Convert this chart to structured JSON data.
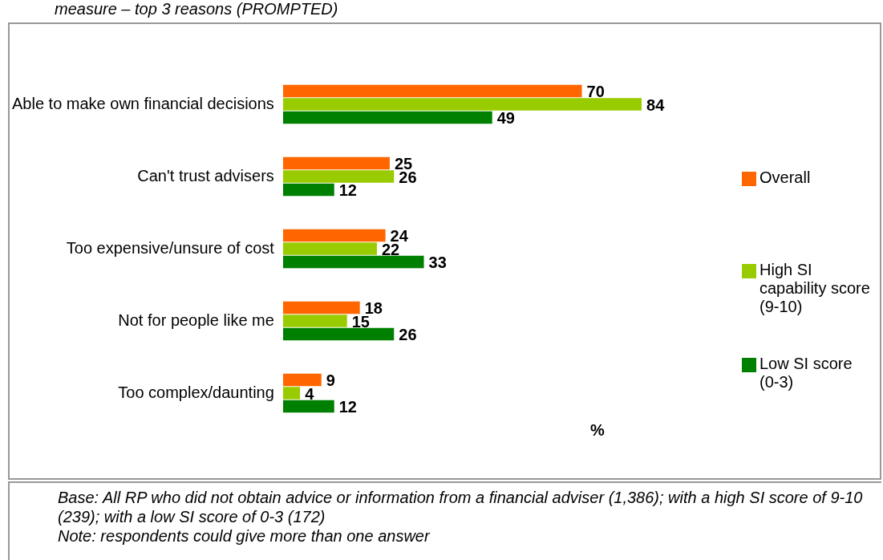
{
  "chart_data": {
    "type": "bar",
    "orientation": "horizontal",
    "title": "measure – top 3 reasons (PROMPTED)",
    "xlabel": "%",
    "categories": [
      "Able to make own financial decisions",
      "Can't trust advisers",
      "Too expensive/unsure of cost",
      "Not for people like me",
      "Too complex/daunting"
    ],
    "series": [
      {
        "name": "Overall",
        "color": "#ff6600",
        "values": [
          70,
          25,
          24,
          18,
          9
        ]
      },
      {
        "name": "High SI capability score (9-10)",
        "color": "#99cc00",
        "values": [
          84,
          26,
          22,
          15,
          4
        ]
      },
      {
        "name": "Low SI score (0-3)",
        "color": "#008000",
        "values": [
          49,
          12,
          33,
          26,
          12
        ]
      }
    ],
    "data_labels": true,
    "legend": "right",
    "annotations": [
      "Base: All RP who did not obtain advice or information from a financial adviser (1,386); with a high SI score of 9-10 (239); with a low SI score of 0-3 (172)",
      "Note: respondents could give more than one answer"
    ]
  }
}
